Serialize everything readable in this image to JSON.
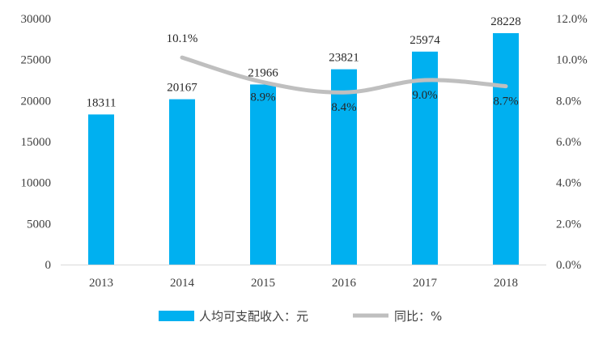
{
  "chart_data": {
    "type": "bar",
    "categories": [
      "2013",
      "2014",
      "2015",
      "2016",
      "2017",
      "2018"
    ],
    "series": [
      {
        "name": "人均可支配收入：元",
        "type": "bar",
        "axis": "left",
        "color": "#00B0F0",
        "values": [
          18311,
          20167,
          21966,
          23821,
          25974,
          28228
        ],
        "labels": [
          "18311",
          "20167",
          "21966",
          "23821",
          "25974",
          "28228"
        ]
      },
      {
        "name": "同比：%",
        "type": "line",
        "axis": "right",
        "color": "#BFBFBF",
        "values": [
          null,
          10.1,
          8.9,
          8.4,
          9.0,
          8.7
        ],
        "labels": [
          "",
          "10.1%",
          "8.9%",
          "8.4%",
          "9.0%",
          "8.7%"
        ]
      }
    ],
    "y_left": {
      "min": 0,
      "max": 30000,
      "ticks": [
        "0",
        "5000",
        "10000",
        "15000",
        "20000",
        "25000",
        "30000"
      ]
    },
    "y_right": {
      "min": 0,
      "max": 12,
      "ticks": [
        "0.0%",
        "2.0%",
        "4.0%",
        "6.0%",
        "8.0%",
        "10.0%",
        "12.0%"
      ]
    },
    "grid": false,
    "legend_position": "bottom"
  }
}
